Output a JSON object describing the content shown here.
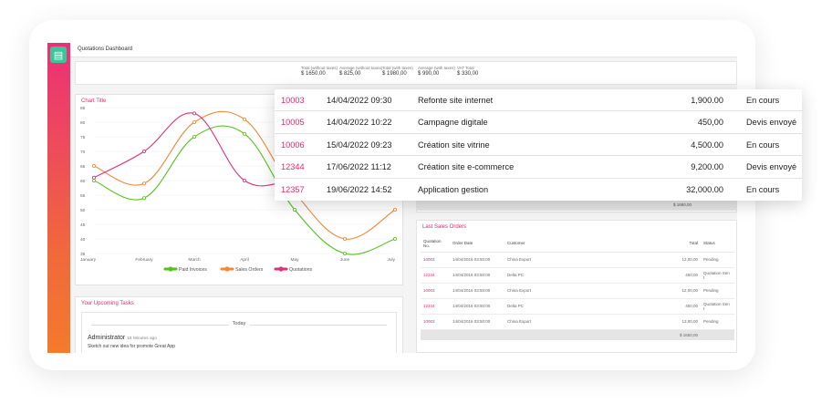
{
  "window": {
    "title": "Quotations Dashboard"
  },
  "colors": {
    "accent": "#e6286e",
    "sidebar_top": "#ec2f78",
    "sidebar_bottom": "#f47a2c",
    "logo": "#3cc49a",
    "paid": "#52c41a",
    "sales": "#f58634",
    "quotations": "#e0307a"
  },
  "summary": [
    {
      "label": "Total (without taxes)",
      "value": "$ 1650,00"
    },
    {
      "label": "Average (without taxes)",
      "value": "$ 825,00"
    },
    {
      "label": "Total (with taxes)",
      "value": "$ 1980,00"
    },
    {
      "label": "Average (with taxes)",
      "value": "$ 990,00"
    },
    {
      "label": "VAT Total",
      "value": "$ 330,00"
    }
  ],
  "chart_panel": {
    "title": "Chart Title"
  },
  "chart_data": {
    "type": "line",
    "title": "Chart Title",
    "categories": [
      "January",
      "February",
      "March",
      "April",
      "May",
      "June",
      "July"
    ],
    "ylim": [
      35,
      85
    ],
    "yticks": [
      35,
      40,
      45,
      50,
      55,
      60,
      65,
      70,
      75,
      80,
      85
    ],
    "series": [
      {
        "name": "Paid Invoices",
        "values": [
          60,
          54,
          75,
          76,
          50,
          35,
          40
        ]
      },
      {
        "name": "Sales Orders",
        "values": [
          65,
          59,
          80,
          81,
          56,
          40,
          50
        ]
      },
      {
        "name": "Quotations",
        "values": [
          61,
          70,
          83,
          60,
          60,
          60,
          60
        ]
      }
    ],
    "legend": "bottom"
  },
  "tasks": {
    "title": "Your Upcoming Tasks",
    "group": "Today",
    "user": "Administrator",
    "time": "16 Minutes ago",
    "desc": "Sketch out new idea for promote Great App"
  },
  "right_panel": {
    "total": "$ 1650,00"
  },
  "orders": {
    "title": "Last Sales Orders",
    "headers": [
      "Quotation No.",
      "Order Date",
      "Customer",
      "Total",
      "Status"
    ],
    "rows": [
      {
        "no": "10003",
        "date": "14/04/2016 03:50:00",
        "customer": "China Export",
        "total": "12,00,00",
        "status": "Pending"
      },
      {
        "no": "12344",
        "date": "14/04/2016 03:50:00",
        "customer": "Delta PC",
        "total": "450,00",
        "status": "Quotation Sen t"
      },
      {
        "no": "10003",
        "date": "14/04/2016 03:50:00",
        "customer": "China Export",
        "total": "12,00,00",
        "status": "Pending"
      },
      {
        "no": "12344",
        "date": "14/04/2016 03:50:00",
        "customer": "Delta PC",
        "total": "450,00",
        "status": "Quotation Sen t"
      },
      {
        "no": "10003",
        "date": "14/04/2016 03:50:00",
        "customer": "China Export",
        "total": "12,00,00",
        "status": "Pending"
      }
    ],
    "footer_total": "$ 1650,00"
  },
  "popup": {
    "rows": [
      {
        "id": "10003",
        "date": "14/04/2022 09:30",
        "name": "Refonte site internet",
        "amount": "1,900.00",
        "status": "En cours"
      },
      {
        "id": "10005",
        "date": "14/04/2022 10:22",
        "name": "Campagne digitale",
        "amount": "450,00",
        "status": "Devis envoyé"
      },
      {
        "id": "10006",
        "date": "15/04/2022 09:23",
        "name": "Création site vitrine",
        "amount": "4,500.00",
        "status": "En cours"
      },
      {
        "id": "12344",
        "date": "17/06/2022 11:12",
        "name": "Création site e-commerce",
        "amount": "9,200.00",
        "status": "Devis envoyé"
      },
      {
        "id": "12357",
        "date": "19/06/2022 14:52",
        "name": "Application gestion",
        "amount": "32,000.00",
        "status": "En cours"
      }
    ]
  }
}
